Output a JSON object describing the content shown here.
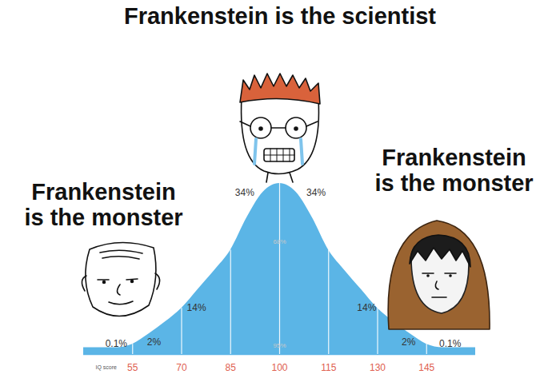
{
  "chart_data": {
    "type": "area",
    "title": "Frankenstein is the scientist",
    "annotations": [
      "Frankenstein is the monster",
      "Frankenstein is the monster"
    ],
    "x_label": "IQ score",
    "x": [
      40,
      45,
      50,
      55,
      60,
      65,
      70,
      75,
      80,
      85,
      90,
      95,
      100,
      105,
      110,
      115,
      120,
      125,
      130,
      135,
      140,
      145,
      150,
      155,
      160
    ],
    "values": [
      4,
      4,
      4,
      6,
      12,
      19,
      27,
      38,
      49,
      61,
      80,
      95,
      100,
      95,
      80,
      61,
      49,
      38,
      27,
      19,
      12,
      6,
      4,
      4,
      4
    ],
    "color": "#5bb5e6",
    "xlim": [
      40,
      160
    ],
    "ylim": [
      0,
      100
    ],
    "xticks": [
      55,
      70,
      85,
      100,
      115,
      130,
      145
    ],
    "tick_labels": "x",
    "regions": {
      "bounds": [
        45,
        55,
        70,
        85,
        100,
        115,
        130,
        145,
        155
      ],
      "values": [
        0.1,
        2,
        14,
        34,
        34,
        14,
        2,
        0.1
      ],
      "value_labels": [
        "0.1%",
        "2%",
        "14%",
        "34%",
        "34%",
        "14%",
        "2%",
        "0.1%"
      ]
    },
    "inner_labels": {
      "values": [
        68,
        95
      ],
      "value_labels": [
        "68%",
        "95%"
      ]
    }
  }
}
